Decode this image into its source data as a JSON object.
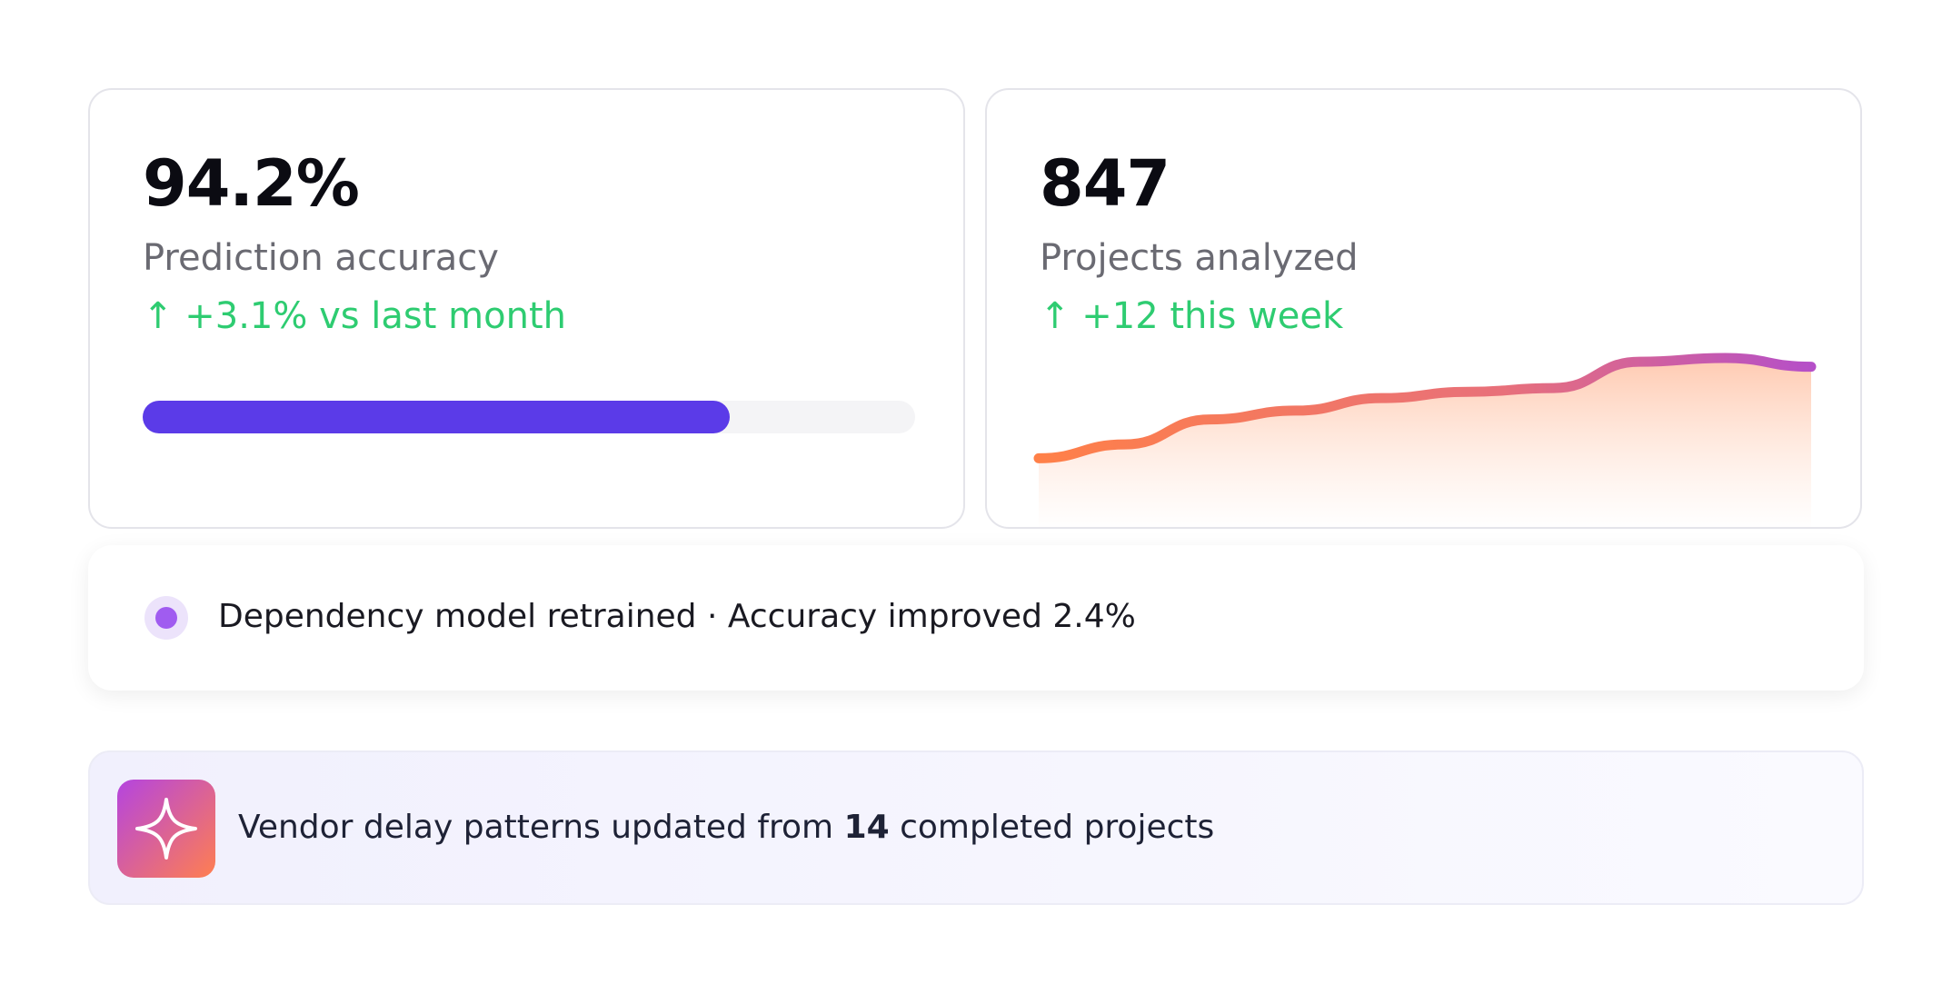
{
  "cards": [
    {
      "value": "94.2%",
      "label": "Prediction accuracy",
      "change": "↑ +3.1% vs last month",
      "progress": 76
    },
    {
      "value": "847",
      "label": "Projects analyzed",
      "change": "↑ +12 this week",
      "sparkline": [
        36,
        47,
        67,
        74,
        84,
        89,
        92,
        113,
        116,
        109
      ]
    }
  ],
  "notification": {
    "text": "Dependency model retrained · Accuracy improved 2.4%"
  },
  "banner": {
    "text_before": "Vendor delay patterns updated from ",
    "count": "14",
    "text_after": " completed projects"
  }
}
